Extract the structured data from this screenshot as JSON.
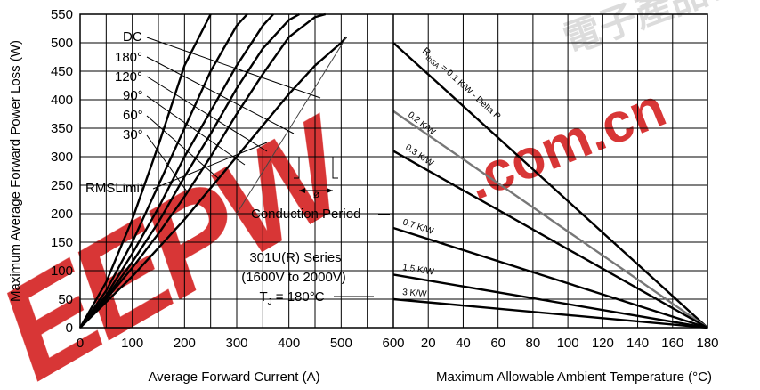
{
  "chart_data": {
    "type": "line",
    "ylabel": "Maximum Average Forward Power Loss (W)",
    "ylim": [
      0,
      550
    ],
    "y_ticks": [
      "0",
      "50",
      "100",
      "150",
      "200",
      "250",
      "300",
      "350",
      "400",
      "450",
      "500",
      "550"
    ],
    "left": {
      "xlabel": "Average Forward Current (A)",
      "xlim": [
        0,
        600
      ],
      "x_ticks": [
        "0",
        "100",
        "200",
        "300",
        "400",
        "500"
      ],
      "series": [
        {
          "name": "30°",
          "x": [
            0,
            50,
            100,
            150,
            200,
            250
          ],
          "y": [
            0,
            80,
            190,
            320,
            460,
            550
          ]
        },
        {
          "name": "60°",
          "x": [
            0,
            50,
            100,
            150,
            200,
            250,
            300,
            320
          ],
          "y": [
            0,
            65,
            150,
            250,
            350,
            450,
            530,
            550
          ]
        },
        {
          "name": "90°",
          "x": [
            0,
            50,
            100,
            150,
            200,
            250,
            300,
            350,
            370
          ],
          "y": [
            0,
            57,
            130,
            210,
            300,
            380,
            460,
            530,
            550
          ]
        },
        {
          "name": "120°",
          "x": [
            0,
            50,
            100,
            150,
            200,
            250,
            300,
            350,
            400,
            420
          ],
          "y": [
            0,
            53,
            115,
            185,
            265,
            340,
            420,
            490,
            540,
            550
          ]
        },
        {
          "name": "180°",
          "x": [
            0,
            50,
            100,
            150,
            200,
            250,
            300,
            350,
            400,
            450,
            470
          ],
          "y": [
            0,
            50,
            105,
            165,
            230,
            300,
            375,
            445,
            510,
            545,
            550
          ]
        },
        {
          "name": "DC",
          "x": [
            0,
            50,
            100,
            150,
            200,
            250,
            300,
            350,
            400,
            450,
            500,
            510
          ],
          "y": [
            0,
            45,
            90,
            140,
            190,
            245,
            300,
            355,
            410,
            460,
            500,
            510
          ]
        }
      ],
      "rms_limit": {
        "x": [
          300,
          510
        ],
        "y": [
          200,
          510
        ]
      },
      "labels": {
        "dc": "DC",
        "a180": "180°",
        "a120": "120°",
        "a90": "90°",
        "a60": "60°",
        "a30": "30°",
        "rms": "RMSLimit",
        "conduction": "Conduction Period",
        "phi": "ø",
        "series1": "301U(R) Series",
        "series2": "(1600V to 2000V)",
        "tj_prefix": "T",
        "tj_sub": "J",
        "tj_suffix": " = 180°C"
      }
    },
    "right": {
      "xlabel": "Maximum Allowable Ambient Temperature (°C)",
      "xlim": [
        0,
        180
      ],
      "x_ticks": [
        "0",
        "20",
        "40",
        "60",
        "80",
        "100",
        "120",
        "140",
        "160",
        "180"
      ],
      "series": [
        {
          "name": "R_thSA = 0.1 K/W - Delta R",
          "x": [
            0,
            180
          ],
          "y": [
            500,
            0
          ],
          "color": "#000000"
        },
        {
          "name": "0.2 K/W",
          "x": [
            0,
            180
          ],
          "y": [
            380,
            0
          ],
          "color": "#777777"
        },
        {
          "name": "0.3 K/W",
          "x": [
            0,
            180
          ],
          "y": [
            310,
            0
          ],
          "color": "#000000"
        },
        {
          "name": "0.7 K/W",
          "x": [
            0,
            180
          ],
          "y": [
            175,
            0
          ],
          "color": "#000000"
        },
        {
          "name": "1.5 K/W",
          "x": [
            0,
            180
          ],
          "y": [
            93,
            0
          ],
          "color": "#000000"
        },
        {
          "name": "3 K/W",
          "x": [
            0,
            180
          ],
          "y": [
            50,
            0
          ],
          "color": "#000000"
        }
      ],
      "labels": {
        "r_prefix": "R",
        "r_sub": "thSA",
        "r_rest": " = 0.1 K/W - Delta R",
        "k02": "0.2 K/W",
        "k03": "0.3 K/W",
        "k07": "0.7 K/W",
        "k15": "1.5 K/W",
        "k3": "3 K/W"
      }
    },
    "grid": true,
    "colors": {
      "curve": "#000000",
      "gray_curve": "#777777",
      "watermark": "#d42020"
    }
  },
  "watermark": {
    "text1": "EEPW",
    "text2": ".com.cn",
    "text3": "電子產品世界"
  }
}
